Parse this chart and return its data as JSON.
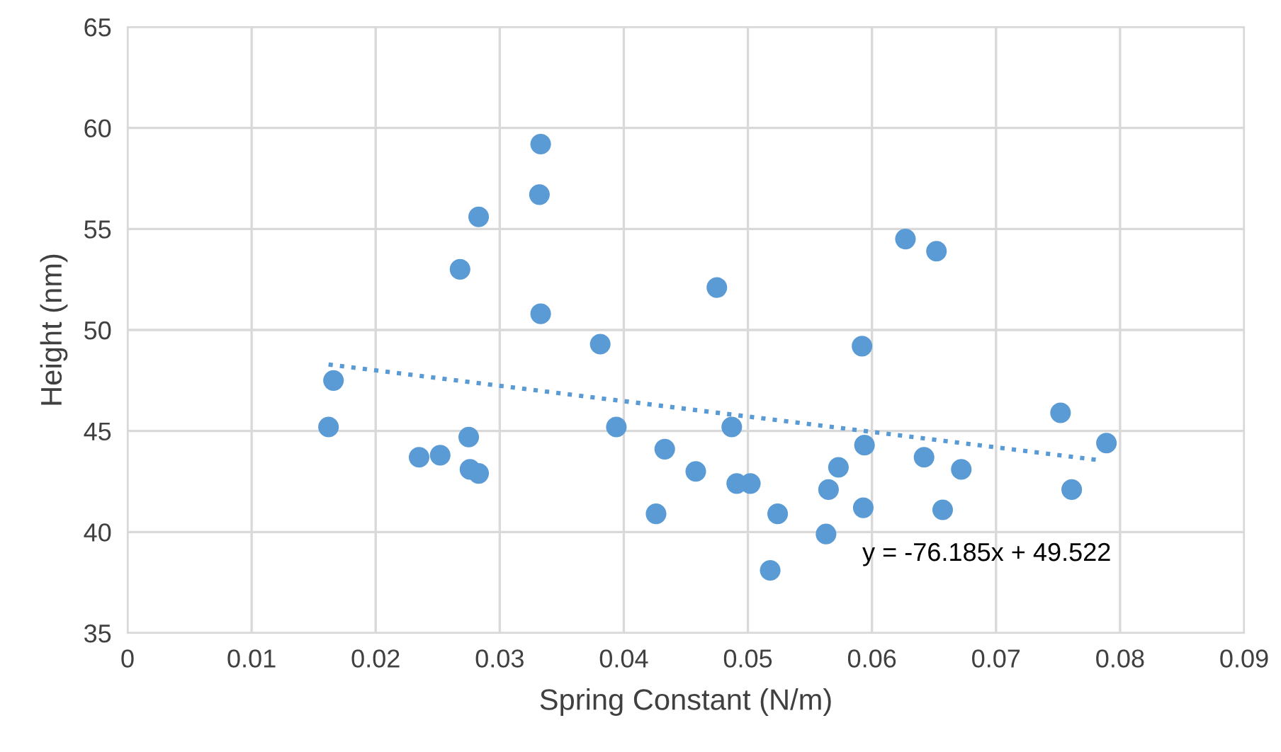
{
  "chart_data": {
    "type": "scatter",
    "xlabel": "Spring Constant (N/m)",
    "ylabel": "Height (nm)",
    "xlim": [
      0,
      0.09
    ],
    "xticks": [
      0,
      0.01,
      0.02,
      0.03,
      0.04,
      0.05,
      0.06,
      0.07,
      0.08,
      0.09
    ],
    "ylim": [
      35,
      65
    ],
    "yticks": [
      35,
      40,
      45,
      50,
      55,
      60,
      65
    ],
    "grid": true,
    "legend": false,
    "marker": "circle",
    "series": [
      {
        "color": "#5b9bd5",
        "x": [
          0.0162,
          0.0166,
          0.0235,
          0.0252,
          0.0268,
          0.0275,
          0.0276,
          0.0283,
          0.0283,
          0.0333,
          0.0332,
          0.0333,
          0.0381,
          0.0394,
          0.0426,
          0.0433,
          0.0458,
          0.0475,
          0.0487,
          0.0491,
          0.0502,
          0.0524,
          0.0518,
          0.0565,
          0.0563,
          0.0573,
          0.0592,
          0.0594,
          0.0593,
          0.0627,
          0.0652,
          0.0642,
          0.0672,
          0.0657,
          0.0752,
          0.0761,
          0.0789
        ],
        "values": [
          45.2,
          47.5,
          43.7,
          43.8,
          53.0,
          44.7,
          43.1,
          42.9,
          55.6,
          59.2,
          56.7,
          50.8,
          49.3,
          45.2,
          40.9,
          44.1,
          43.0,
          52.1,
          45.2,
          42.4,
          42.4,
          40.9,
          38.1,
          42.1,
          39.9,
          43.2,
          49.2,
          44.3,
          41.2,
          54.5,
          53.9,
          43.7,
          43.1,
          41.1,
          45.9,
          42.1,
          44.4
        ]
      },
      {
        "type": "line",
        "color": "#5b9bd5",
        "line_style": "dotted",
        "marker": "none",
        "x": [
          0.0162,
          0.0783
        ],
        "values": [
          48.29,
          43.56
        ]
      }
    ],
    "annotations": [
      "y = -76.185x + 49.522"
    ]
  }
}
